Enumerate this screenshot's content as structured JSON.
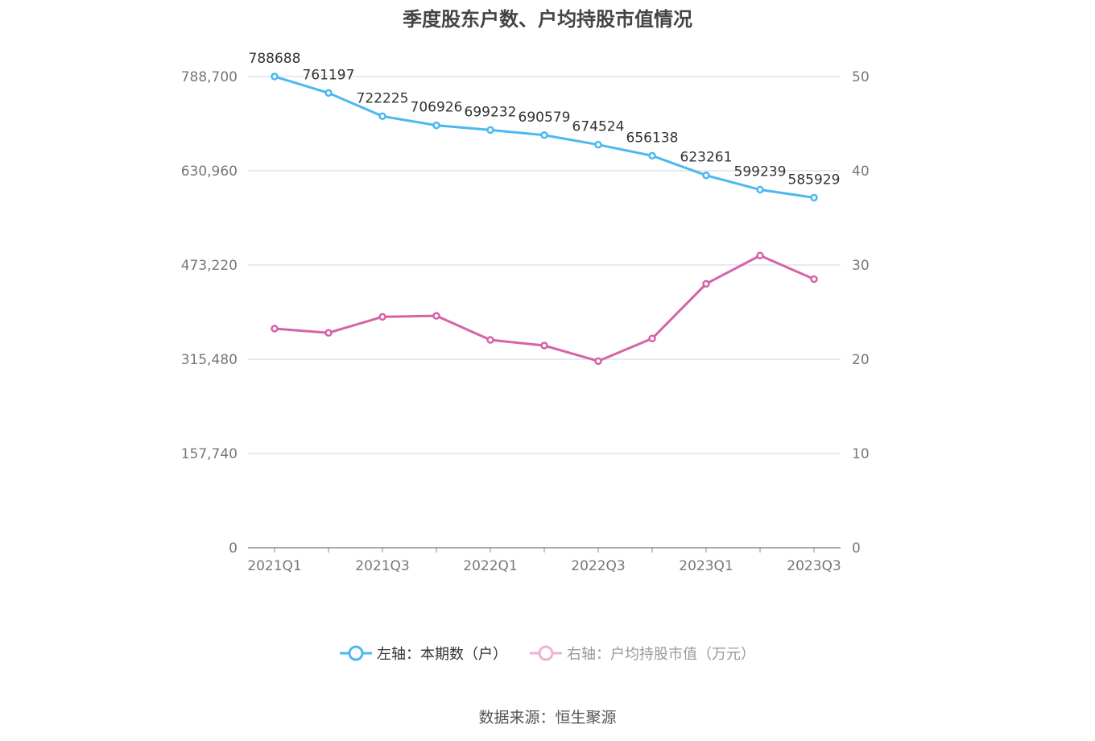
{
  "chart_data": {
    "type": "line",
    "title": "季度股东户数、户均持股市值情况",
    "categories": [
      "2021Q1",
      "2021Q2",
      "2021Q3",
      "2021Q4",
      "2022Q1",
      "2022Q2",
      "2022Q3",
      "2022Q4",
      "2023Q1",
      "2023Q2",
      "2023Q3"
    ],
    "x_tick_labels": [
      "2021Q1",
      "2021Q3",
      "2022Q1",
      "2022Q3",
      "2023Q1",
      "2023Q3"
    ],
    "left_axis": {
      "ylim": [
        0,
        788700
      ],
      "ticks": [
        "0",
        "157,740",
        "315,480",
        "473,220",
        "630,960",
        "788,700"
      ]
    },
    "right_axis": {
      "ylim": [
        0,
        50
      ],
      "ticks": [
        "0",
        "10",
        "20",
        "30",
        "40",
        "50"
      ]
    },
    "series": [
      {
        "name": "左轴：本期数（户）",
        "axis": "left",
        "color": "#4cb8f0",
        "values": [
          788688,
          761197,
          722225,
          706926,
          699232,
          690579,
          674524,
          656138,
          623261,
          599239,
          585929
        ],
        "labels": [
          "788688",
          "761197",
          "722225",
          "706926",
          "699232",
          "690579",
          "674524",
          "656138",
          "623261",
          "599239",
          "585929"
        ]
      },
      {
        "name": "右轴：户均持股市值（万元）",
        "axis": "right",
        "color": "#d563a8",
        "values": [
          23.25,
          22.8,
          24.5,
          24.6,
          22.05,
          21.45,
          19.8,
          22.2,
          28.0,
          31.0,
          28.5
        ]
      }
    ],
    "grid": true,
    "legend_position": "bottom"
  },
  "source": "数据来源：恒生聚源"
}
